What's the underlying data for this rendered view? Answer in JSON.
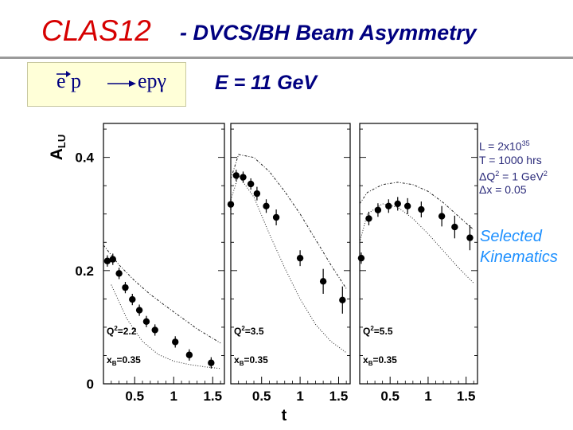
{
  "header": {
    "title_main": "CLAS12",
    "title_sub": "- DVCS/BH Beam Asymmetry"
  },
  "reaction": {
    "initial": "e p",
    "final": "epγ"
  },
  "energy_label": "E = 11 GeV",
  "info": {
    "lumi_base": "L = 2x10",
    "lumi_exp": "35",
    "time": "T = 1000 hrs",
    "dq_pre": "ΔQ",
    "dq_sup": "2",
    "dq_mid": " = 1 GeV",
    "dq_sup2": "2",
    "dx": "Δx = 0.05"
  },
  "selected_label": [
    "Selected",
    "Kinematics"
  ],
  "colors": {
    "title_red": "#d60000",
    "title_blue": "#000080",
    "selected_blue": "#1e90ff",
    "reaction_bg": "#ffffd8"
  },
  "chart_data": {
    "type": "scatter",
    "ylabel": "A_LU",
    "xlabel": "t",
    "ylim": [
      0,
      0.46
    ],
    "yticks": [
      0,
      0.2,
      0.4
    ],
    "ytick_labels": [
      "0",
      "0.2",
      "0.4"
    ],
    "xticks": [
      0.5,
      1,
      1.5
    ],
    "xtick_labels": [
      "0.5",
      "1",
      "1.5"
    ],
    "panels": [
      {
        "xlim": [
          0.1,
          1.65
        ],
        "q2_label": "Q",
        "q2_value": "=2.2",
        "xb_label": "x",
        "xb_value": "=0.35",
        "points": [
          {
            "x": 0.15,
            "y": 0.217,
            "err": 0.01
          },
          {
            "x": 0.22,
            "y": 0.22,
            "err": 0.01
          },
          {
            "x": 0.3,
            "y": 0.195,
            "err": 0.01
          },
          {
            "x": 0.38,
            "y": 0.17,
            "err": 0.01
          },
          {
            "x": 0.47,
            "y": 0.149,
            "err": 0.01
          },
          {
            "x": 0.56,
            "y": 0.13,
            "err": 0.01
          },
          {
            "x": 0.65,
            "y": 0.11,
            "err": 0.01
          },
          {
            "x": 0.76,
            "y": 0.095,
            "err": 0.01
          },
          {
            "x": 1.02,
            "y": 0.074,
            "err": 0.01
          },
          {
            "x": 1.2,
            "y": 0.051,
            "err": 0.01
          },
          {
            "x": 1.48,
            "y": 0.037,
            "err": 0.01
          }
        ],
        "curve_upper": [
          [
            0.1,
            0.245
          ],
          [
            0.3,
            0.21
          ],
          [
            0.5,
            0.182
          ],
          [
            0.7,
            0.158
          ],
          [
            0.9,
            0.137
          ],
          [
            1.1,
            0.117
          ],
          [
            1.3,
            0.097
          ],
          [
            1.6,
            0.072
          ]
        ],
        "curve_lower": [
          [
            0.2,
            0.175
          ],
          [
            0.4,
            0.115
          ],
          [
            0.6,
            0.075
          ],
          [
            0.8,
            0.052
          ],
          [
            1.0,
            0.04
          ],
          [
            1.2,
            0.034
          ],
          [
            1.4,
            0.03
          ],
          [
            1.6,
            0.027
          ]
        ]
      },
      {
        "xlim": [
          0.1,
          1.65
        ],
        "q2_label": "Q",
        "q2_value": "=3.5",
        "xb_label": "x",
        "xb_value": "=0.35",
        "points": [
          {
            "x": 0.1,
            "y": 0.317,
            "err": 0.01
          },
          {
            "x": 0.17,
            "y": 0.368,
            "err": 0.01
          },
          {
            "x": 0.26,
            "y": 0.365,
            "err": 0.01
          },
          {
            "x": 0.36,
            "y": 0.353,
            "err": 0.01
          },
          {
            "x": 0.44,
            "y": 0.336,
            "err": 0.012
          },
          {
            "x": 0.56,
            "y": 0.314,
            "err": 0.012
          },
          {
            "x": 0.69,
            "y": 0.294,
            "err": 0.014
          },
          {
            "x": 1.0,
            "y": 0.222,
            "err": 0.014
          },
          {
            "x": 1.3,
            "y": 0.181,
            "err": 0.022
          },
          {
            "x": 1.55,
            "y": 0.148,
            "err": 0.024
          }
        ],
        "curve_upper": [
          [
            0.1,
            0.362
          ],
          [
            0.2,
            0.405
          ],
          [
            0.4,
            0.4
          ],
          [
            0.6,
            0.375
          ],
          [
            0.8,
            0.34
          ],
          [
            1.0,
            0.3
          ],
          [
            1.2,
            0.255
          ],
          [
            1.4,
            0.21
          ],
          [
            1.6,
            0.168
          ]
        ],
        "curve_lower": [
          [
            0.1,
            0.325
          ],
          [
            0.2,
            0.368
          ],
          [
            0.4,
            0.33
          ],
          [
            0.6,
            0.265
          ],
          [
            0.8,
            0.205
          ],
          [
            1.0,
            0.15
          ],
          [
            1.2,
            0.105
          ],
          [
            1.4,
            0.075
          ],
          [
            1.6,
            0.055
          ]
        ]
      },
      {
        "xlim": [
          0.1,
          1.65
        ],
        "q2_label": "Q",
        "q2_value": "=5.5",
        "xb_label": "x",
        "xb_value": "=0.35",
        "points": [
          {
            "x": 0.12,
            "y": 0.222,
            "err": 0.01
          },
          {
            "x": 0.22,
            "y": 0.292,
            "err": 0.012
          },
          {
            "x": 0.34,
            "y": 0.307,
            "err": 0.012
          },
          {
            "x": 0.48,
            "y": 0.314,
            "err": 0.012
          },
          {
            "x": 0.6,
            "y": 0.318,
            "err": 0.012
          },
          {
            "x": 0.73,
            "y": 0.314,
            "err": 0.014
          },
          {
            "x": 0.91,
            "y": 0.308,
            "err": 0.014
          },
          {
            "x": 1.18,
            "y": 0.296,
            "err": 0.018
          },
          {
            "x": 1.35,
            "y": 0.277,
            "err": 0.02
          },
          {
            "x": 1.55,
            "y": 0.258,
            "err": 0.022
          }
        ],
        "curve_upper": [
          [
            0.1,
            0.318
          ],
          [
            0.2,
            0.338
          ],
          [
            0.4,
            0.352
          ],
          [
            0.6,
            0.356
          ],
          [
            0.8,
            0.352
          ],
          [
            1.0,
            0.34
          ],
          [
            1.2,
            0.32
          ],
          [
            1.4,
            0.296
          ],
          [
            1.6,
            0.272
          ]
        ],
        "curve_lower": [
          [
            0.1,
            0.25
          ],
          [
            0.2,
            0.3
          ],
          [
            0.4,
            0.318
          ],
          [
            0.6,
            0.312
          ],
          [
            0.8,
            0.292
          ],
          [
            1.0,
            0.265
          ],
          [
            1.2,
            0.235
          ],
          [
            1.4,
            0.205
          ],
          [
            1.6,
            0.178
          ]
        ]
      }
    ]
  }
}
